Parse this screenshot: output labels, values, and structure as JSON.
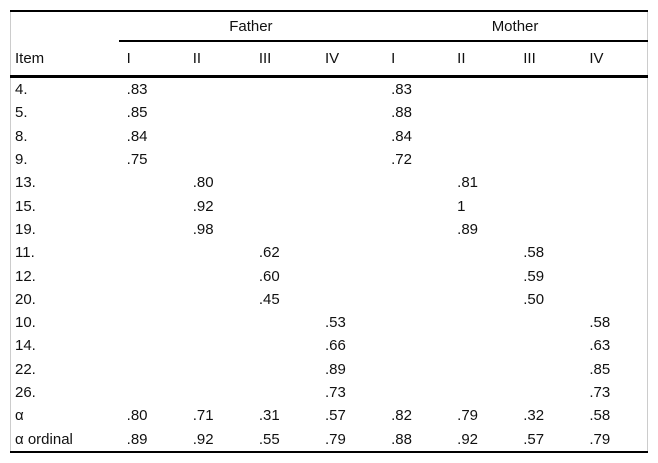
{
  "table": {
    "group_headers": [
      {
        "label": "Father"
      },
      {
        "label": "Mother"
      }
    ],
    "item_header": "Item",
    "column_headers": [
      "I",
      "II",
      "III",
      "IV",
      "I",
      "II",
      "III",
      "IV"
    ],
    "rows": [
      {
        "item": "4.",
        "values": [
          ".83",
          "",
          "",
          "",
          ".83",
          "",
          "",
          ""
        ]
      },
      {
        "item": "5.",
        "values": [
          ".85",
          "",
          "",
          "",
          ".88",
          "",
          "",
          ""
        ]
      },
      {
        "item": "8.",
        "values": [
          ".84",
          "",
          "",
          "",
          ".84",
          "",
          "",
          ""
        ]
      },
      {
        "item": "9.",
        "values": [
          ".75",
          "",
          "",
          "",
          ".72",
          "",
          "",
          ""
        ]
      },
      {
        "item": "13.",
        "values": [
          "",
          ".80",
          "",
          "",
          "",
          ".81",
          "",
          ""
        ]
      },
      {
        "item": "15.",
        "values": [
          "",
          ".92",
          "",
          "",
          "",
          "1",
          "",
          ""
        ]
      },
      {
        "item": "19.",
        "values": [
          "",
          ".98",
          "",
          "",
          "",
          ".89",
          "",
          ""
        ]
      },
      {
        "item": "11.",
        "values": [
          "",
          "",
          ".62",
          "",
          "",
          "",
          ".58",
          ""
        ]
      },
      {
        "item": "12.",
        "values": [
          "",
          "",
          ".60",
          "",
          "",
          "",
          ".59",
          ""
        ]
      },
      {
        "item": "20.",
        "values": [
          "",
          "",
          ".45",
          "",
          "",
          "",
          ".50",
          ""
        ]
      },
      {
        "item": "10.",
        "values": [
          "",
          "",
          "",
          ".53",
          "",
          "",
          "",
          ".58"
        ]
      },
      {
        "item": "14.",
        "values": [
          "",
          "",
          "",
          ".66",
          "",
          "",
          "",
          ".63"
        ]
      },
      {
        "item": "22.",
        "values": [
          "",
          "",
          "",
          ".89",
          "",
          "",
          "",
          ".85"
        ]
      },
      {
        "item": "26.",
        "values": [
          "",
          "",
          "",
          ".73",
          "",
          "",
          "",
          ".73"
        ]
      },
      {
        "item": "α",
        "values": [
          ".80",
          ".71",
          ".31",
          ".57",
          ".82",
          ".79",
          ".32",
          ".58"
        ]
      },
      {
        "item": "α ordinal",
        "values": [
          ".89",
          ".92",
          ".55",
          ".79",
          ".88",
          ".92",
          ".57",
          ".79"
        ]
      }
    ],
    "line_color": "#000000",
    "edge_line_color": "#cccccc",
    "text_color": "#111111",
    "background_color": "#ffffff"
  }
}
